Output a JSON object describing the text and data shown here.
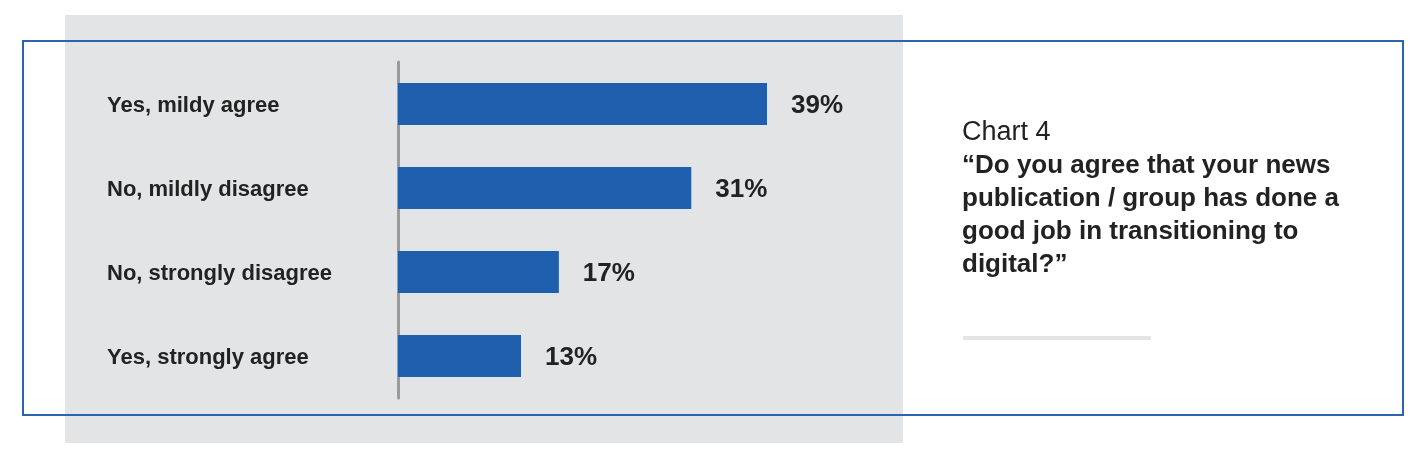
{
  "chart_data": {
    "type": "bar",
    "orientation": "horizontal",
    "title": "Chart 4",
    "subtitle": "“Do you agree that your news publication / group has done a good job in transitioning to digital?”",
    "categories": [
      "Yes, mildy agree",
      "No, mildly disagree",
      "No, strongly disagree",
      "Yes, strongly agree"
    ],
    "values": [
      39,
      31,
      17,
      13
    ],
    "value_labels": [
      "39%",
      "31%",
      "17%",
      "13%"
    ],
    "color": "#1f5fad"
  }
}
